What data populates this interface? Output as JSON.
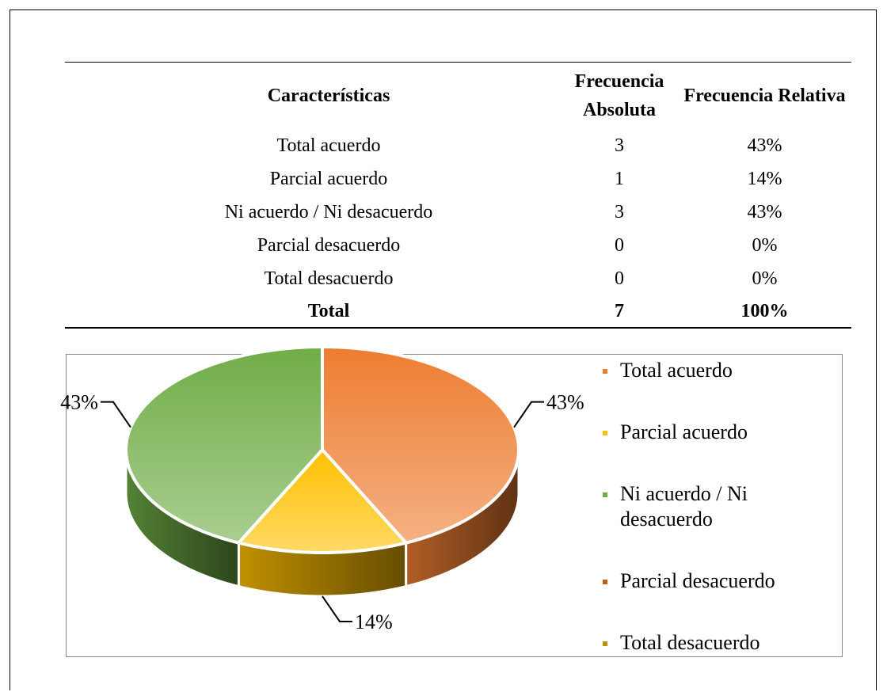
{
  "table": {
    "header": [
      "Características",
      "Frecuencia Absoluta",
      "Frecuencia Relativa"
    ],
    "rows": [
      [
        "Total acuerdo",
        "3",
        "43%"
      ],
      [
        "Parcial acuerdo",
        "1",
        "14%"
      ],
      [
        "Ni acuerdo / Ni desacuerdo",
        "3",
        "43%"
      ],
      [
        "Parcial desacuerdo",
        "0",
        "0%"
      ],
      [
        "Total desacuerdo",
        "0",
        "0%"
      ]
    ],
    "total": [
      "Total",
      "7",
      "100%"
    ]
  },
  "chart_data": {
    "type": "pie",
    "categories": [
      "Total acuerdo",
      "Parcial acuerdo",
      "Ni acuerdo / Ni desacuerdo",
      "Parcial desacuerdo",
      "Total desacuerdo"
    ],
    "values": [
      43,
      14,
      43,
      0,
      0
    ],
    "value_labels": [
      "43%",
      "14%",
      "43%",
      null,
      null
    ],
    "colors": [
      "#ED7D31",
      "#FFC000",
      "#70AD47",
      "#C55A11",
      "#BF9000"
    ],
    "legend": "right"
  }
}
